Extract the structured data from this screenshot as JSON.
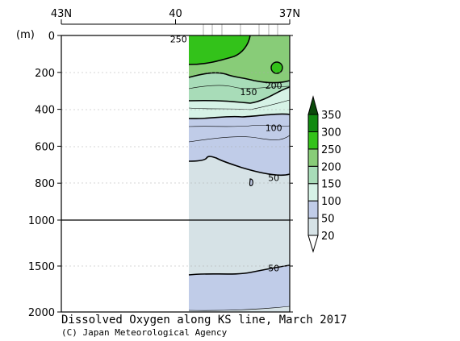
{
  "chart_data": {
    "type": "heatmap",
    "title": "Dissolved Oxygen along KS line, March 2017",
    "credit": "(C) Japan Meteorological Agency",
    "ylabel": "(m)",
    "x_axis": {
      "ticks": [
        {
          "value": 43,
          "label": "43N"
        },
        {
          "value": 40,
          "label": "40"
        },
        {
          "value": 37,
          "label": "37N"
        }
      ],
      "range": [
        43,
        37
      ]
    },
    "y_axis": {
      "upper_ticks": [
        0,
        200,
        400,
        600,
        800,
        1000
      ],
      "lower_ticks": [
        1000,
        1500,
        2000
      ],
      "upper_range": [
        0,
        1000
      ],
      "lower_range": [
        1000,
        2000
      ]
    },
    "colorbar": {
      "levels": [
        20,
        50,
        100,
        150,
        200,
        250,
        300,
        350
      ],
      "colors": [
        "#ffffff",
        "#d6e2e6",
        "#c0cce8",
        "#d6f2e6",
        "#a8dcb8",
        "#88cc78",
        "#33c21a",
        "#118a11",
        "#0a4a0a"
      ]
    },
    "contour_labels": [
      {
        "text": "250",
        "lat": 39.92,
        "depth": 20
      },
      {
        "text": "200",
        "lat": 37.42,
        "depth": 270
      },
      {
        "text": "150",
        "lat": 38.08,
        "depth": 305
      },
      {
        "text": "100",
        "lat": 37.42,
        "depth": 500
      },
      {
        "text": "50",
        "lat": 37.42,
        "depth": 770
      },
      {
        "text": "50",
        "lat": 37.42,
        "depth": 1520
      }
    ],
    "data_extent": {
      "lat": [
        40.3,
        37.0
      ],
      "depth": [
        0,
        2000
      ]
    }
  }
}
